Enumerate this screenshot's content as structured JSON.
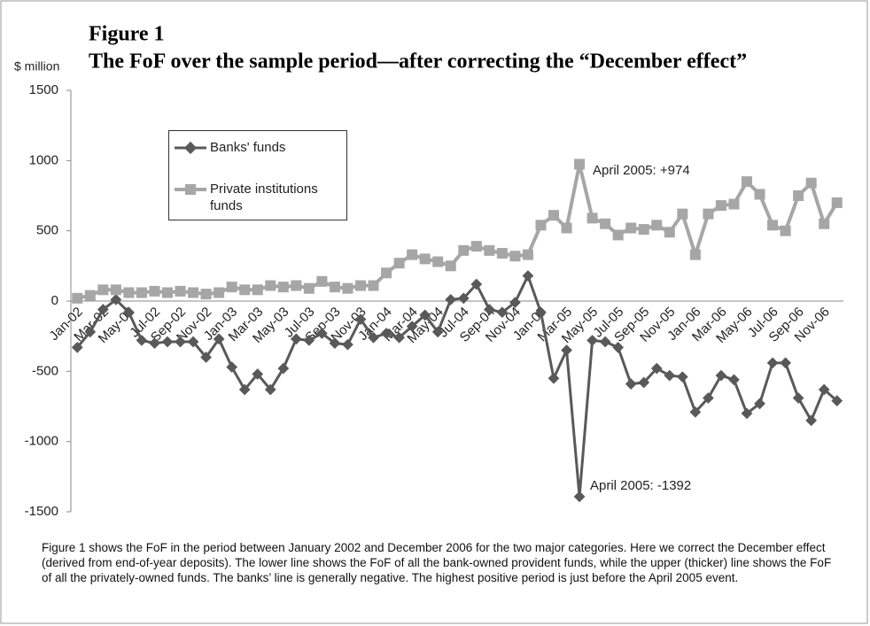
{
  "chart_data": {
    "type": "line",
    "title": "Figure 1",
    "subtitle": "The FoF over the sample period—after correcting the “December effect”",
    "y_label": "$ million",
    "categories": [
      "Jan-02",
      null,
      "Mar-02",
      null,
      "May-02",
      null,
      "Jul-02",
      null,
      "Sep-02",
      null,
      "Nov-02",
      null,
      "Jan-03",
      null,
      "Mar-03",
      null,
      "May-03",
      null,
      "Jul-03",
      null,
      "Sep-03",
      null,
      "Nov-03",
      null,
      "Jan-04",
      null,
      "Mar-04",
      null,
      "May-04",
      null,
      "Jul-04",
      null,
      "Sep-04",
      null,
      "Nov-04",
      null,
      "Jan-05",
      null,
      "Mar-05",
      null,
      "May-05",
      null,
      "Jul-05",
      null,
      "Sep-05",
      null,
      "Nov-05",
      null,
      "Jan-06",
      null,
      "Mar-06",
      null,
      "May-06",
      null,
      "Jul-06",
      null,
      "Sep-06",
      null,
      "Nov-06",
      null
    ],
    "series": [
      {
        "name": "Banks' funds",
        "color": "#595959",
        "marker": "diamond",
        "values": [
          -330,
          -220,
          -60,
          10,
          -80,
          -280,
          -300,
          -290,
          -290,
          -290,
          -400,
          -270,
          -470,
          -630,
          -520,
          -630,
          -480,
          -270,
          -280,
          -230,
          -300,
          -310,
          -130,
          -260,
          -230,
          -260,
          -180,
          -100,
          -220,
          10,
          20,
          120,
          -60,
          -80,
          -10,
          180,
          -80,
          -550,
          -350,
          -1392,
          -280,
          -290,
          -330,
          -590,
          -580,
          -480,
          -530,
          -540,
          -790,
          -690,
          -530,
          -560,
          -800,
          -730,
          -440,
          -440,
          -690,
          -850,
          -630,
          -710
        ]
      },
      {
        "name": "Private institutions funds",
        "color": "#a6a6a6",
        "marker": "square",
        "values": [
          20,
          40,
          80,
          80,
          60,
          60,
          70,
          60,
          70,
          60,
          50,
          60,
          100,
          80,
          80,
          110,
          100,
          110,
          90,
          140,
          100,
          90,
          110,
          110,
          200,
          270,
          330,
          300,
          280,
          250,
          360,
          390,
          360,
          340,
          320,
          330,
          540,
          610,
          520,
          974,
          590,
          550,
          470,
          520,
          510,
          540,
          490,
          620,
          330,
          620,
          680,
          690,
          850,
          760,
          540,
          500,
          750,
          840,
          550,
          700
        ]
      }
    ],
    "ylim": [
      -1500,
      1500
    ],
    "yticks": [
      -1500,
      -1000,
      -500,
      0,
      500,
      1000,
      1500
    ],
    "annotations": [
      "April 2005: +974",
      "April 2005: -1392"
    ],
    "caption": "Figure 1 shows the FoF in the period between January 2002 and December 2006 for the two major categories. Here we correct the December effect (derived from end-of-year deposits). The lower line shows the FoF of all the bank-owned provident funds, while the upper (thicker) line shows the FoF of all the privately-owned funds. The banks’ line is generally negative. The highest positive period is just before the April 2005 event."
  }
}
